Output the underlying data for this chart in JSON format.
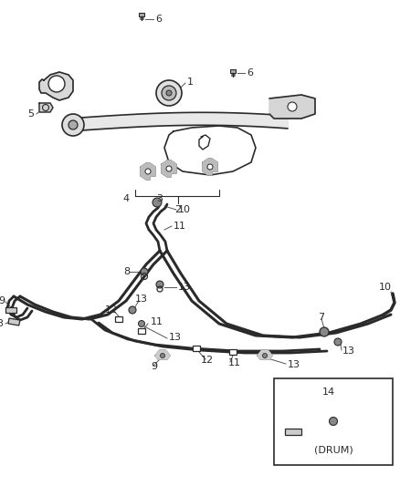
{
  "bg_color": "#ffffff",
  "line_color": "#2a2a2a",
  "label_color": "#2a2a2a",
  "fig_width": 4.38,
  "fig_height": 5.33,
  "dpi": 100
}
